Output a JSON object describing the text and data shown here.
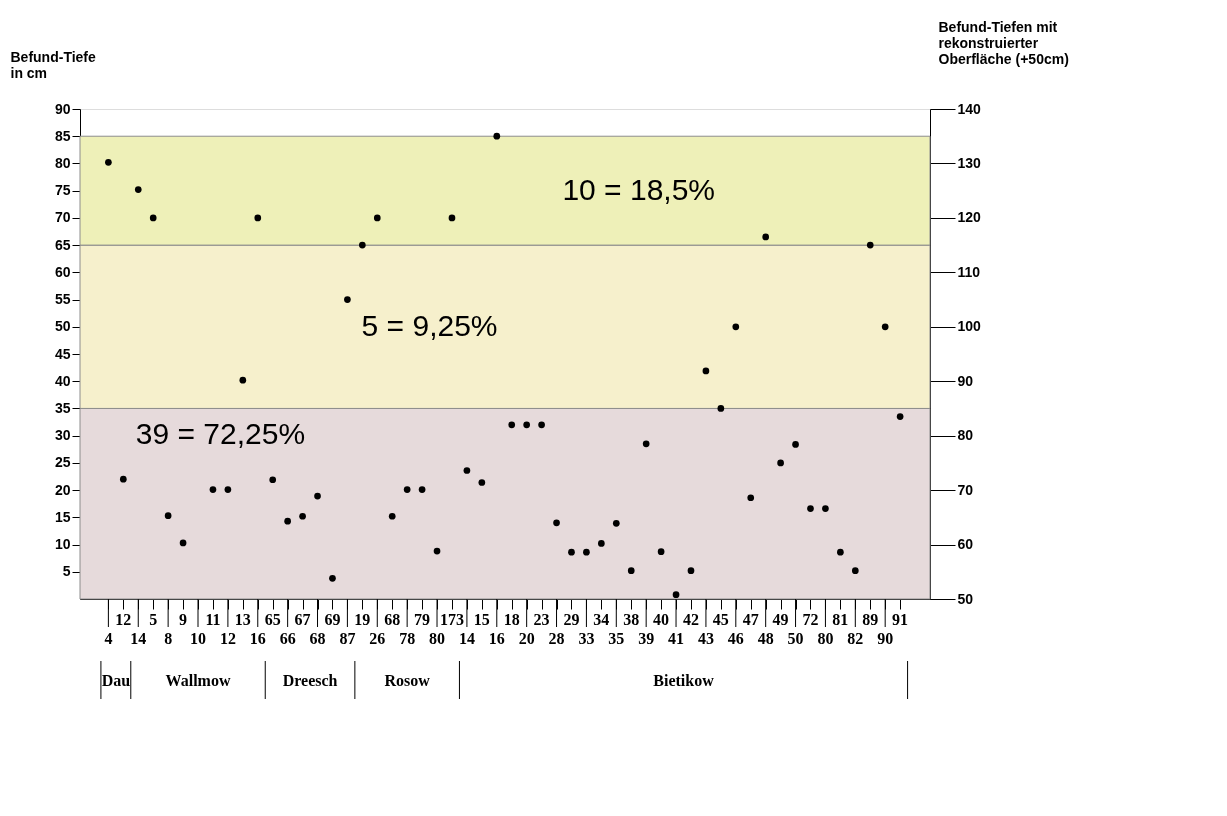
{
  "chart_data": {
    "type": "scatter",
    "ylabel": "Befund-Tiefe\nin cm",
    "y2label": "Befund-Tiefen mit\nrekonstruierter\nOberfläche (+50cm)",
    "categories": [
      "4",
      "12",
      "14",
      "5",
      "8",
      "9",
      "10",
      "11",
      "12",
      "13",
      "16",
      "65",
      "66",
      "67",
      "68",
      "69",
      "87",
      "19",
      "26",
      "68",
      "78",
      "79",
      "80",
      "173",
      "14",
      "15",
      "16",
      "18",
      "20",
      "23",
      "28",
      "29",
      "33",
      "34",
      "35",
      "38",
      "39",
      "40",
      "41",
      "42",
      "43",
      "45",
      "46",
      "47",
      "48",
      "49",
      "50",
      "72",
      "80",
      "81",
      "82",
      "89",
      "90",
      "91"
    ],
    "values": [
      80.2,
      22,
      75.2,
      70,
      15.3,
      10.3,
      null,
      20.1,
      20.1,
      40.2,
      70,
      21.9,
      14.3,
      15.2,
      18.9,
      3.8,
      55,
      65,
      70,
      15.2,
      20.1,
      20.1,
      8.8,
      70,
      23.6,
      21.4,
      85,
      32,
      32,
      32,
      14,
      8.6,
      8.6,
      10.2,
      13.9,
      5.2,
      28.5,
      8.7,
      0.8,
      5.2,
      41.9,
      35,
      50,
      18.6,
      66.5,
      25,
      28.4,
      16.6,
      16.6,
      8.6,
      5.2,
      65,
      50,
      33.5
    ],
    "color": "#000000",
    "marker": "circle",
    "grid": false,
    "ylim": [
      0,
      90
    ],
    "yticks": [
      5,
      10,
      15,
      20,
      25,
      30,
      35,
      40,
      45,
      50,
      55,
      60,
      65,
      70,
      75,
      80,
      85,
      90
    ],
    "y2lim": [
      50,
      140
    ],
    "y2ticks": [
      50,
      60,
      70,
      80,
      90,
      100,
      110,
      120,
      130,
      140
    ],
    "bands": [
      {
        "axis": "y",
        "from": 0,
        "to": 35,
        "label": "39 = 72,25%",
        "color": "#e6dadb"
      },
      {
        "axis": "y",
        "from": 35,
        "to": 65,
        "label": "5 = 9,25%",
        "color": "#f6f0cc"
      },
      {
        "axis": "y",
        "from": 65,
        "to": 85,
        "label": "10 = 18,5%",
        "color": "#eef0b8"
      }
    ],
    "annotations": [
      "Dau",
      "Wallmow",
      "Dreesch",
      "Rosow",
      "Bietikow"
    ]
  }
}
